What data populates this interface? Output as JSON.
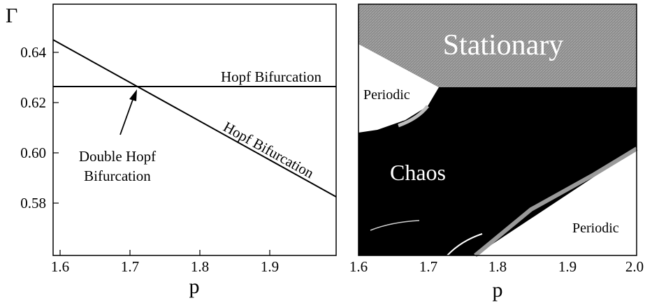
{
  "chart_data": [
    {
      "type": "line",
      "title": "",
      "xlabel": "p",
      "ylabel": "Γ",
      "xlim": [
        1.6,
        2.0
      ],
      "ylim": [
        0.573,
        0.648
      ],
      "xticks": [
        "1.6",
        "1.7",
        "1.8",
        "1.9"
      ],
      "yticks": [
        "0.58",
        "0.60",
        "0.62",
        "0.64"
      ],
      "ytick_values": [
        0.58,
        0.6,
        0.62,
        0.64
      ],
      "series": [
        {
          "name": "Hopf Bifurcation",
          "x": [
            1.6,
            2.0
          ],
          "y": [
            0.6265,
            0.6265
          ]
        },
        {
          "name": "Hopf Bifurcation",
          "x": [
            1.6,
            2.0
          ],
          "y": [
            0.6445,
            0.583
          ]
        }
      ],
      "annotations": [
        {
          "text": "Double Hopf",
          "x": 1.72,
          "y": 0.6265
        },
        {
          "text": "Bifurcation",
          "x": 1.72,
          "y": 0.6265
        }
      ]
    },
    {
      "type": "heatmap",
      "title": "",
      "xlabel": "p",
      "xlim": [
        1.6,
        2.0
      ],
      "xticks": [
        "1.6",
        "1.7",
        "1.8",
        "1.9",
        "2.0"
      ],
      "regions": [
        {
          "name": "Stationary",
          "color": "#8c8c8c"
        },
        {
          "name": "Periodic",
          "color": "#ffffff"
        },
        {
          "name": "Chaos",
          "color": "#000000"
        },
        {
          "name": "Periodic",
          "color": "#ffffff"
        }
      ]
    }
  ]
}
